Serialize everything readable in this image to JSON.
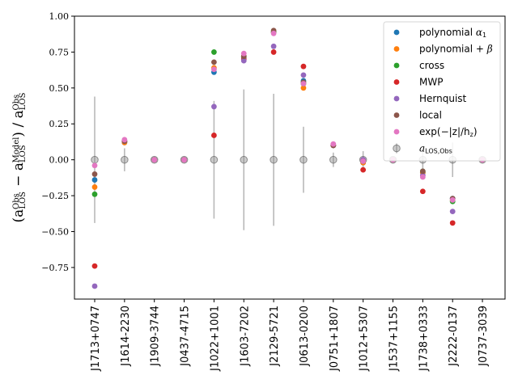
{
  "chart_data": {
    "type": "scatter",
    "title": "",
    "xlabel": "",
    "ylabel": "(a_LOS^Obs − a_LOS^Model) / a_LOS^Obs",
    "ylim": [
      -0.97,
      1.0
    ],
    "yticks": [
      1.0,
      0.75,
      0.5,
      0.25,
      0.0,
      -0.25,
      -0.5,
      -0.75
    ],
    "ytick_labels": [
      "1.00",
      "0.75",
      "0.50",
      "0.25",
      "0.00",
      "−0.25",
      "−0.50",
      "−0.75"
    ],
    "categories": [
      "J1713+0747",
      "J1614-2230",
      "J1909-3744",
      "J0437-4715",
      "J1022+1001",
      "J1603-7202",
      "J2129-5721",
      "J0613-0200",
      "J0751+1807",
      "J1012+5307",
      "J1537+1155",
      "J1738+0333",
      "J2222-0137",
      "J0737-3039"
    ],
    "series": [
      {
        "name": "polynomial α1",
        "legend_parts": [
          "polynomial ",
          "α",
          "1"
        ],
        "color": "#1f77b4",
        "values": [
          -0.14,
          0.12,
          0.0,
          0.0,
          0.61,
          0.71,
          0.89,
          0.55,
          0.1,
          -0.02,
          0.0,
          -0.09,
          -0.27,
          0.0
        ]
      },
      {
        "name": "polynomial + β",
        "legend_parts": [
          "polynomial + ",
          "β",
          ""
        ],
        "color": "#ff7f0e",
        "values": [
          -0.19,
          0.12,
          0.0,
          0.0,
          0.64,
          0.72,
          0.89,
          0.5,
          0.1,
          -0.02,
          0.0,
          -0.09,
          -0.28,
          0.0
        ]
      },
      {
        "name": "cross",
        "legend_parts": [
          "cross",
          "",
          ""
        ],
        "color": "#2ca02c",
        "values": [
          -0.24,
          0.13,
          0.0,
          0.0,
          0.75,
          0.72,
          0.89,
          0.53,
          0.1,
          -0.01,
          0.0,
          -0.08,
          -0.29,
          0.0
        ]
      },
      {
        "name": "MWP",
        "legend_parts": [
          "MWP",
          "",
          ""
        ],
        "color": "#d62728",
        "values": [
          -0.74,
          0.13,
          0.0,
          0.0,
          0.17,
          0.7,
          0.75,
          0.65,
          0.1,
          -0.07,
          0.0,
          -0.22,
          -0.44,
          0.0
        ]
      },
      {
        "name": "Hernquist",
        "legend_parts": [
          "Hernquist",
          "",
          ""
        ],
        "color": "#9467bd",
        "values": [
          -0.88,
          0.13,
          0.0,
          0.0,
          0.37,
          0.69,
          0.79,
          0.59,
          0.1,
          0.0,
          0.0,
          -0.11,
          -0.36,
          0.0
        ]
      },
      {
        "name": "local",
        "legend_parts": [
          "local",
          "",
          ""
        ],
        "color": "#8c564b",
        "values": [
          -0.1,
          0.13,
          0.0,
          0.0,
          0.68,
          0.72,
          0.9,
          0.54,
          0.1,
          -0.01,
          0.0,
          -0.08,
          -0.27,
          0.0
        ]
      },
      {
        "name": "exp(−|z|/hz)",
        "legend_parts": [
          "exp(−|z|/h",
          "",
          "z",
          ")"
        ],
        "color": "#e377c2",
        "values": [
          -0.04,
          0.14,
          0.0,
          0.0,
          0.63,
          0.74,
          0.88,
          0.53,
          0.11,
          -0.01,
          0.0,
          -0.12,
          -0.28,
          0.0
        ]
      }
    ],
    "reference": {
      "name": "a_LOS,Obs",
      "color": "#808080",
      "values": [
        0.0,
        0.0,
        0.0,
        0.0,
        0.0,
        0.0,
        0.0,
        0.0,
        0.0,
        0.0,
        0.0,
        0.0,
        0.0,
        0.0
      ],
      "errors": [
        0.44,
        0.08,
        0.0,
        0.0,
        0.41,
        0.49,
        0.46,
        0.23,
        0.05,
        0.06,
        0.0,
        0.1,
        0.12,
        0.0
      ]
    },
    "legend_position": "top-right",
    "grid": false
  }
}
